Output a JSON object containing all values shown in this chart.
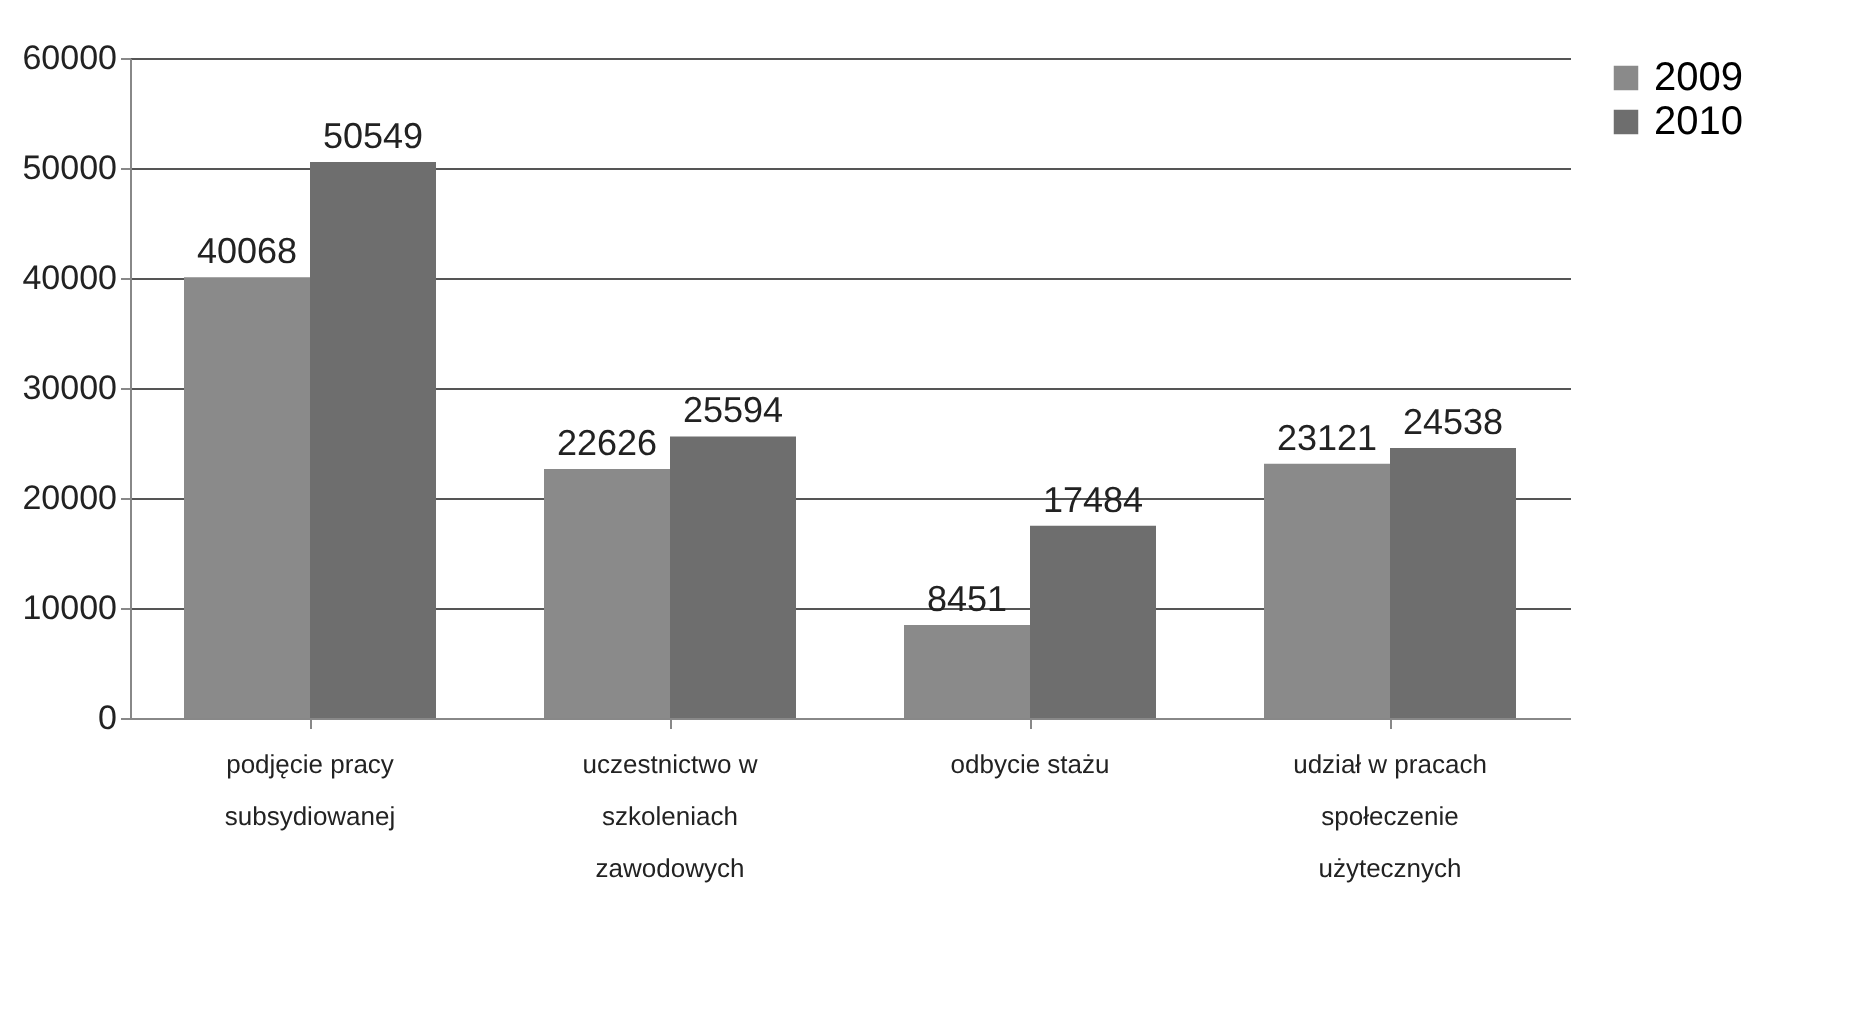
{
  "chart_data": {
    "type": "bar",
    "categories": [
      "podjęcie pracy subsydiowanej",
      "uczestnictwo w szkoleniach zawodowych",
      "odbycie stażu",
      "udział w pracach społeczenie użytecznych"
    ],
    "series": [
      {
        "name": "2009",
        "color": "#8a8a8a",
        "values": [
          40068,
          22626,
          8451,
          23121
        ]
      },
      {
        "name": "2010",
        "color": "#6e6e6e",
        "values": [
          50549,
          25594,
          17484,
          24538
        ]
      }
    ],
    "ylim": [
      0,
      60000
    ],
    "yticks": [
      0,
      10000,
      20000,
      30000,
      40000,
      50000,
      60000
    ],
    "grid": "y",
    "legend": "right",
    "data_labels": true
  }
}
